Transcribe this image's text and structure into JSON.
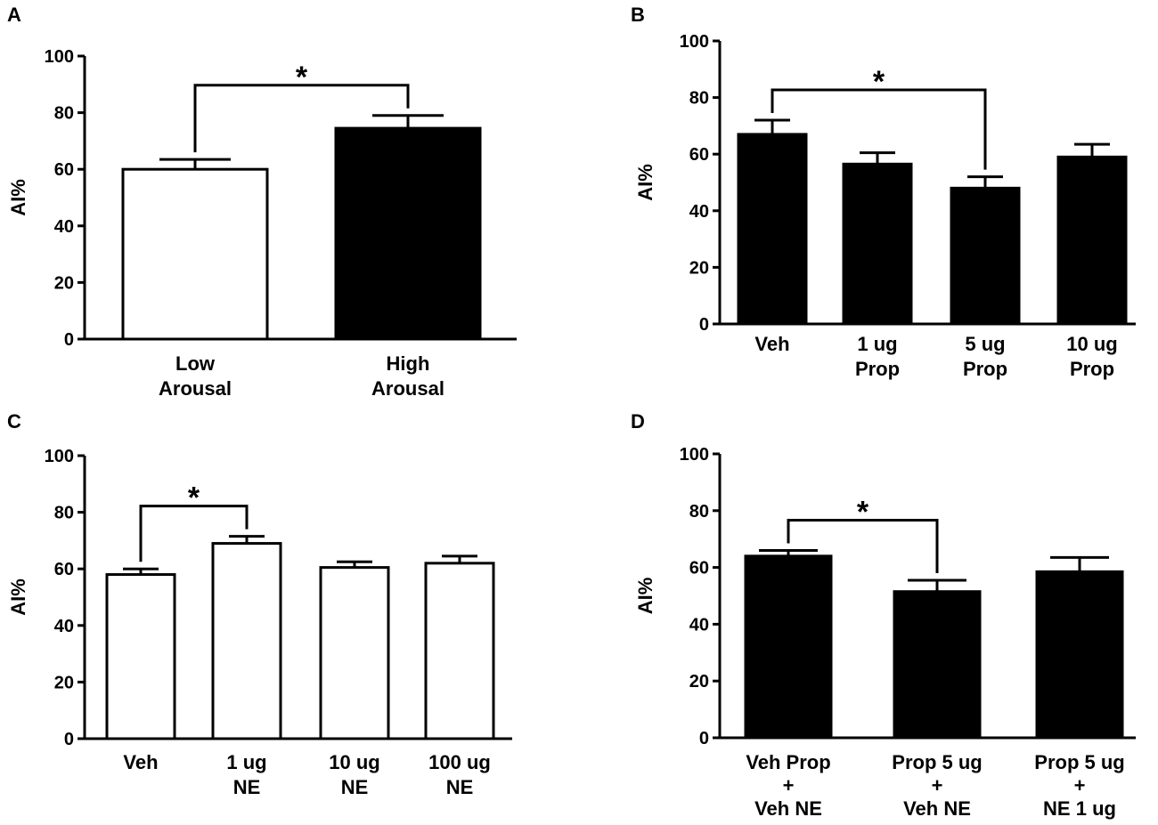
{
  "chart_data": [
    {
      "type": "bar",
      "panel": "A",
      "ylabel": "AI%",
      "ylim": [
        0,
        100
      ],
      "yticks": [
        "0",
        "20",
        "40",
        "60",
        "80",
        "100"
      ],
      "categories": [
        [
          "Low",
          "Arousal"
        ],
        [
          "High",
          "Arousal"
        ]
      ],
      "values": [
        60,
        74.5
      ],
      "errors": [
        3.5,
        4.5
      ],
      "fills": [
        "#ffffff",
        "#000000"
      ],
      "significance": [
        {
          "from": 0,
          "to": 1,
          "label": "*"
        }
      ]
    },
    {
      "type": "bar",
      "panel": "B",
      "ylabel": "AI%",
      "ylim": [
        0,
        100
      ],
      "yticks": [
        "0",
        "20",
        "40",
        "60",
        "80",
        "100"
      ],
      "categories": [
        [
          "Veh"
        ],
        [
          "1 ug",
          "Prop"
        ],
        [
          "5 ug",
          "Prop"
        ],
        [
          "10 ug",
          "Prop"
        ]
      ],
      "values": [
        67,
        56.5,
        48,
        59
      ],
      "errors": [
        5,
        4,
        4,
        4.5
      ],
      "fills": [
        "#000000",
        "#000000",
        "#000000",
        "#000000"
      ],
      "significance": [
        {
          "from": 0,
          "to": 2,
          "label": "*"
        }
      ]
    },
    {
      "type": "bar",
      "panel": "C",
      "ylabel": "AI%",
      "ylim": [
        0,
        100
      ],
      "yticks": [
        "0",
        "20",
        "40",
        "60",
        "80",
        "100"
      ],
      "categories": [
        [
          "Veh"
        ],
        [
          "1 ug",
          "NE"
        ],
        [
          "10 ug",
          "NE"
        ],
        [
          "100 ug",
          "NE"
        ]
      ],
      "values": [
        58,
        69,
        60.5,
        62
      ],
      "errors": [
        2,
        2.5,
        2,
        2.5
      ],
      "fills": [
        "#ffffff",
        "#ffffff",
        "#ffffff",
        "#ffffff"
      ],
      "significance": [
        {
          "from": 0,
          "to": 1,
          "label": "*"
        }
      ]
    },
    {
      "type": "bar",
      "panel": "D",
      "ylabel": "AI%",
      "ylim": [
        0,
        100
      ],
      "yticks": [
        "0",
        "20",
        "40",
        "60",
        "80",
        "100"
      ],
      "categories": [
        [
          "Veh Prop",
          "+",
          "Veh NE"
        ],
        [
          "Prop 5 ug",
          "+",
          "Veh NE"
        ],
        [
          "Prop 5 ug",
          "+",
          "NE 1 ug"
        ]
      ],
      "values": [
        64,
        51.5,
        58.5
      ],
      "errors": [
        2,
        4,
        5
      ],
      "fills": [
        "#000000",
        "#000000",
        "#000000"
      ],
      "significance": [
        {
          "from": 0,
          "to": 1,
          "label": "*"
        }
      ]
    }
  ]
}
